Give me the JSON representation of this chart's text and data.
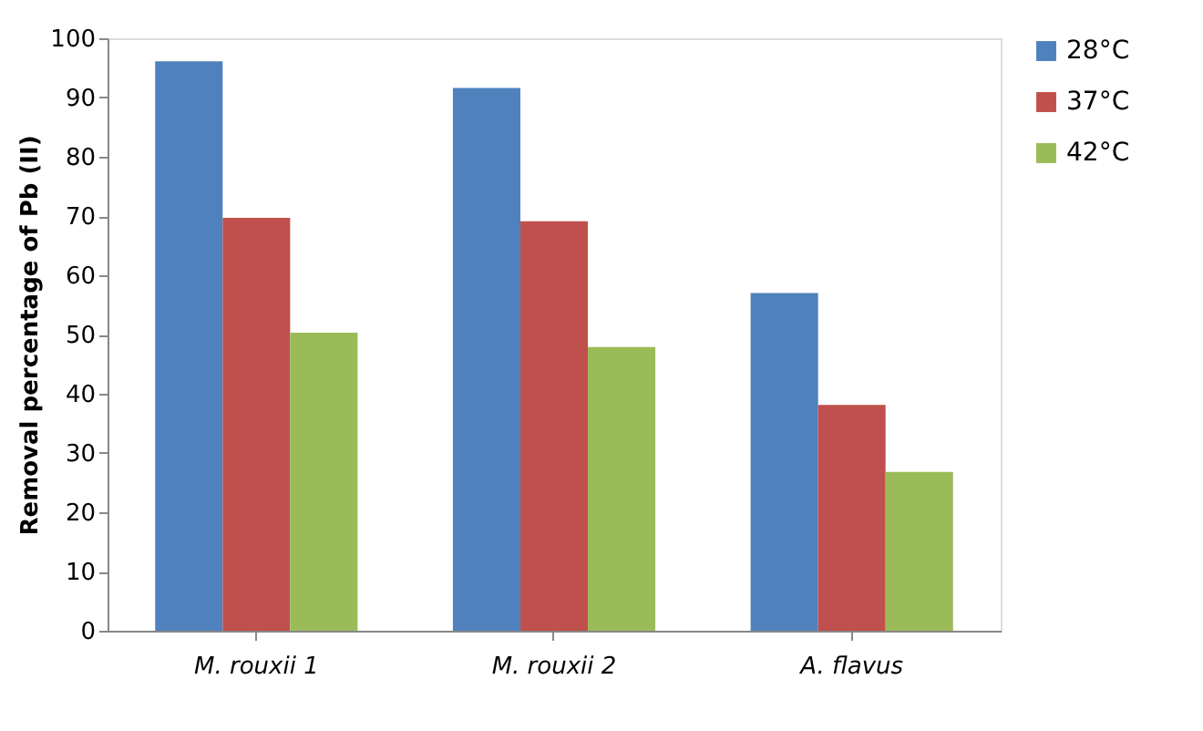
{
  "chart_data": {
    "type": "bar",
    "ylabel": "Removal percentage of Pb (II)",
    "categories": [
      "M. rouxii 1",
      "M. rouxii 2",
      "A. flavus"
    ],
    "series": [
      {
        "name": "28°C",
        "color": "#4f81bd",
        "values": [
          96.1,
          91.6,
          57.0
        ]
      },
      {
        "name": "37°C",
        "color": "#c0504d",
        "values": [
          69.7,
          69.1,
          38.1
        ]
      },
      {
        "name": "42°C",
        "color": "#9bbb59",
        "values": [
          50.3,
          47.9,
          26.8
        ]
      }
    ],
    "ylim": [
      0,
      100
    ],
    "yticks": [
      0,
      10,
      20,
      30,
      40,
      50,
      60,
      70,
      80,
      90,
      100
    ],
    "grid": false,
    "legend": "right"
  }
}
